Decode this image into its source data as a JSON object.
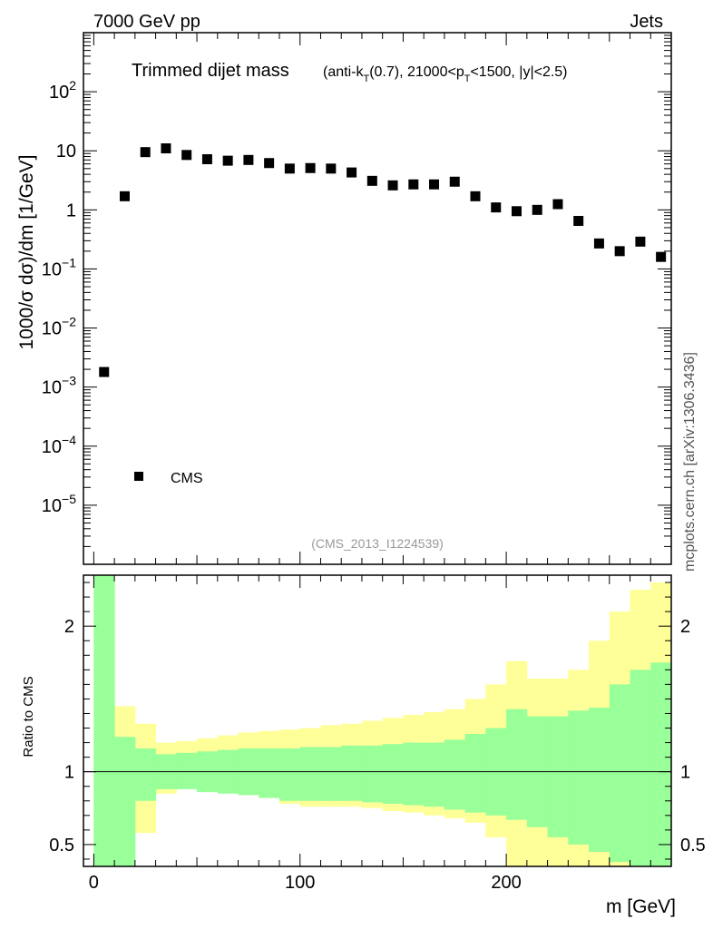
{
  "header": {
    "left": "7000 GeV pp",
    "right": "Jets"
  },
  "title_main": "Trimmed dijet mass",
  "title_sub": {
    "prefix": "(anti-k",
    "sub1": "T",
    "mid": "(0.7), 21000<p",
    "sub2": "T",
    "suffix": "<1500, |y|<2.5)"
  },
  "side_label": "mcplots.cern.ch [arXiv:1306.3436]",
  "analysis_id": "(CMS_2013_I1224539)",
  "legend": {
    "marker": "square",
    "label": "CMS"
  },
  "colors": {
    "data": "#000000",
    "green_band": "#99ff99",
    "yellow_band": "#ffff99",
    "reference_line": "#000000",
    "analysis_id_text": "#999999"
  },
  "chart_data": {
    "type": "scatter",
    "main": {
      "ylabel": "1000/σ dσ)/dm [1/GeV]",
      "yscale": "log",
      "ylim": [
        1e-06,
        1000
      ],
      "ytick_labels": [
        {
          "value": 1e-05,
          "base": "10",
          "exp": "−5"
        },
        {
          "value": 0.0001,
          "base": "10",
          "exp": "−4"
        },
        {
          "value": 0.001,
          "base": "10",
          "exp": "−3"
        },
        {
          "value": 0.01,
          "base": "10",
          "exp": "−2"
        },
        {
          "value": 0.1,
          "base": "10",
          "exp": "−1"
        },
        {
          "value": 1,
          "base": "1",
          "exp": ""
        },
        {
          "value": 10,
          "base": "10",
          "exp": ""
        },
        {
          "value": 100,
          "base": "10",
          "exp": "2"
        }
      ],
      "series": [
        {
          "name": "CMS",
          "marker": "square",
          "x": [
            5,
            15,
            25,
            35,
            45,
            55,
            65,
            75,
            85,
            95,
            105,
            115,
            125,
            135,
            145,
            155,
            165,
            175,
            185,
            195,
            205,
            215,
            225,
            235,
            245,
            255,
            265,
            275
          ],
          "y": [
            0.0018,
            1.7,
            9.5,
            11,
            8.5,
            7.2,
            6.8,
            7,
            6.2,
            5,
            5.1,
            5,
            4.3,
            3.1,
            2.6,
            2.7,
            2.7,
            3,
            1.7,
            1.1,
            0.95,
            1,
            1.25,
            0.65,
            0.27,
            0.2,
            0.29,
            0.16
          ]
        }
      ]
    },
    "ratio": {
      "ylabel": "Ratio to CMS",
      "ylim": [
        0.35,
        2.35
      ],
      "ytick_labels": [
        {
          "value": 0.5,
          "label": "0.5"
        },
        {
          "value": 1,
          "label": "1"
        },
        {
          "value": 2,
          "label": "2"
        }
      ],
      "reference": 1,
      "bins": [
        0,
        10,
        20,
        30,
        40,
        50,
        60,
        70,
        80,
        90,
        100,
        110,
        120,
        130,
        140,
        150,
        160,
        170,
        180,
        190,
        200,
        210,
        220,
        230,
        240,
        250,
        260,
        270,
        280
      ],
      "green_band": {
        "low": [
          0.35,
          0.35,
          0.8,
          0.88,
          0.88,
          0.86,
          0.85,
          0.84,
          0.82,
          0.8,
          0.8,
          0.8,
          0.8,
          0.79,
          0.78,
          0.77,
          0.76,
          0.74,
          0.72,
          0.7,
          0.67,
          0.62,
          0.55,
          0.5,
          0.45,
          0.38,
          0.35,
          0.35
        ],
        "high": [
          2.35,
          1.24,
          1.16,
          1.12,
          1.13,
          1.14,
          1.15,
          1.16,
          1.16,
          1.16,
          1.17,
          1.17,
          1.18,
          1.18,
          1.19,
          1.2,
          1.2,
          1.22,
          1.26,
          1.3,
          1.43,
          1.38,
          1.38,
          1.42,
          1.44,
          1.6,
          1.7,
          1.75
        ]
      },
      "yellow_band": {
        "low": [
          0.35,
          0.58,
          0.58,
          0.85,
          0.9,
          0.88,
          0.86,
          0.84,
          0.82,
          0.78,
          0.76,
          0.76,
          0.76,
          0.75,
          0.73,
          0.72,
          0.7,
          0.68,
          0.65,
          0.55,
          0.35,
          0.35,
          0.35,
          0.35,
          0.35,
          0.35,
          0.35,
          0.35
        ],
        "high": [
          2.35,
          1.45,
          1.33,
          1.2,
          1.21,
          1.23,
          1.25,
          1.27,
          1.28,
          1.29,
          1.3,
          1.32,
          1.33,
          1.35,
          1.37,
          1.39,
          1.41,
          1.43,
          1.5,
          1.6,
          1.76,
          1.64,
          1.64,
          1.7,
          1.9,
          2.1,
          2.25,
          2.3
        ]
      }
    },
    "xaxis": {
      "label": "m [GeV]",
      "xlim": [
        -5,
        280
      ],
      "tick_labels": [
        {
          "value": 0,
          "label": "0"
        },
        {
          "value": 100,
          "label": "100"
        },
        {
          "value": 200,
          "label": "200"
        }
      ]
    }
  }
}
